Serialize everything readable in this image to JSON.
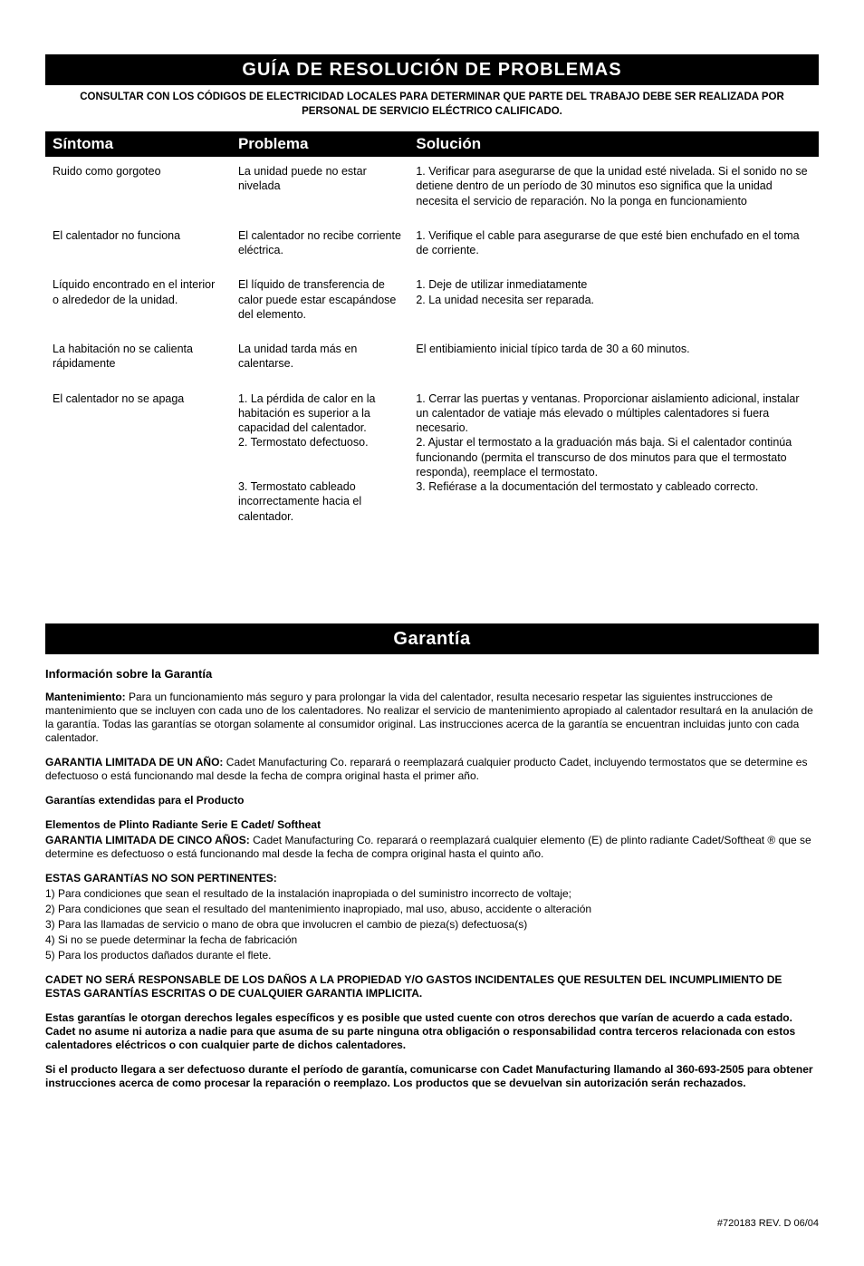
{
  "troubleshooting": {
    "banner": "GUÍA DE RESOLUCIÓN DE PROBLEMAS",
    "subheading": "CONSULTAR CON LOS CÓDIGOS DE ELECTRICIDAD LOCALES PARA DETERMINAR QUE PARTE DEL TRABAJO DEBE SER REALIZADA POR PERSONAL DE SERVICIO ELÉCTRICO CALIFICADO.",
    "headers": {
      "symptom": "Síntoma",
      "problem": "Problema",
      "solution": "Solución"
    },
    "rows": [
      {
        "symptom": "Ruido como gorgoteo",
        "problem": "La unidad puede no estar nivelada",
        "solution": "1. Verificar para asegurarse de que la unidad esté nivelada. Si el sonido no se detiene dentro de un período de 30 minutos eso significa que la unidad necesita el servicio de reparación. No la ponga en funcionamiento"
      },
      {
        "symptom": "El calentador no funciona",
        "problem": "El calentador no recibe corriente eléctrica.",
        "solution": "1. Verifique el cable para asegurarse de que esté bien enchufado en el toma de corriente."
      },
      {
        "symptom": "Líquido encontrado en el interior o alrededor de la unidad.",
        "problem": "El líquido de transferencia de calor puede estar escapándose del elemento.",
        "solution": "1. Deje de utilizar inmediatamente\n2. La unidad necesita ser reparada."
      },
      {
        "symptom": "La habitación no se calienta rápidamente",
        "problem": "La unidad tarda más en calentarse.",
        "solution": "El entibiamiento inicial típico tarda de 30 a 60 minutos."
      },
      {
        "symptom": "El calentador no se apaga",
        "problem": "1. La pérdida de calor en la habitación es superior a la capacidad del calentador.\n2. Termostato defectuoso.\n\n3. Termostato cableado incorrectamente hacia el calentador.",
        "solution": "1. Cerrar las puertas y ventanas. Proporcionar aislamiento adicional, instalar un calentador de vatiaje más elevado o múltiples calentadores si fuera necesario.\n2. Ajustar el termostato a la graduación más baja. Si el calentador continúa funcionando (permita el transcurso de dos minutos para que el termostato responda), reemplace el termostato.\n3. Refiérase a la documentación del termostato y cableado correcto."
      }
    ]
  },
  "warranty": {
    "banner": "Garantía",
    "subtitle": "Información sobre la Garantía",
    "maintenance_label": "Mantenimiento:",
    "maintenance_text": " Para un funcionamiento más seguro y para prolongar la vida del calentador, resulta necesario respetar las siguientes instrucciones de mantenimiento que se incluyen con cada uno de los calentadores. No realizar el servicio de mantenimiento apropiado al calentador resultará en la anulación de la garantía. Todas las garantías se otorgan solamente al consumidor original. Las instrucciones acerca de la garantía se encuentran incluidas junto con cada calentador.",
    "oneyear_label": "GARANTIA LIMITADA DE UN AÑO:",
    "oneyear_text": "  Cadet Manufacturing Co. reparará o reemplazará cualquier producto Cadet, incluyendo termostatos que se determine es defectuoso o está funcionando mal desde la fecha de compra original hasta el primer año.",
    "extended_title": "Garantías extendidas para el Producto",
    "product_line": "Elementos de Plinto Radiante Serie E Cadet/ Softheat",
    "fiveyear_label": "GARANTIA LIMITADA DE CINCO AÑOS:",
    "fiveyear_text": "  Cadet Manufacturing Co. reparará o reemplazará cualquier elemento (E) de plinto radiante Cadet/Softheat ® que se determine es defectuoso o está funcionando mal desde la fecha de compra original hasta el quinto año.",
    "notapply_title": "ESTAS GARANTíAS NO SON PERTINENTES:",
    "notapply_items": [
      "1) Para condiciones que sean el resultado de la instalación inapropiada o del suministro incorrecto de voltaje;",
      "2) Para condiciones que sean el resultado del mantenimiento inapropiado, mal uso, abuso, accidente o alteración",
      "3) Para las llamadas de servicio o mano de obra que involucren el cambio de pieza(s) defectuosa(s)",
      "4) Si no se puede determinar la fecha de fabricación",
      "5) Para los productos dañados durante el flete."
    ],
    "disclaimer": "CADET NO SERÁ RESPONSABLE DE LOS DAÑOS A LA PROPIEDAD Y/O GASTOS INCIDENTALES QUE RESULTEN DEL INCUMPLIMIENTO DE ESTAS GARANTÍAS ESCRITAS O DE CUALQUIER GARANTIA IMPLICITA.",
    "rights": "Estas garantías le otorgan derechos legales específicos y es posible que usted cuente con otros derechos que varían de acuerdo a cada estado. Cadet no asume ni autoriza a nadie para que asuma de su parte ninguna otra obligación o responsabilidad contra terceros relacionada con estos calentadores eléctricos o con cualquier parte de dichos calentadores.",
    "contact": "Si el producto llegara a ser defectuoso durante el período de garantía, comunicarse con Cadet Manufacturing llamando al 360-693-2505 para obtener instrucciones acerca de como procesar la reparación o reemplazo. Los productos que se devuelvan sin autorización serán rechazados."
  },
  "footer": "#720183    REV. D  06/04"
}
